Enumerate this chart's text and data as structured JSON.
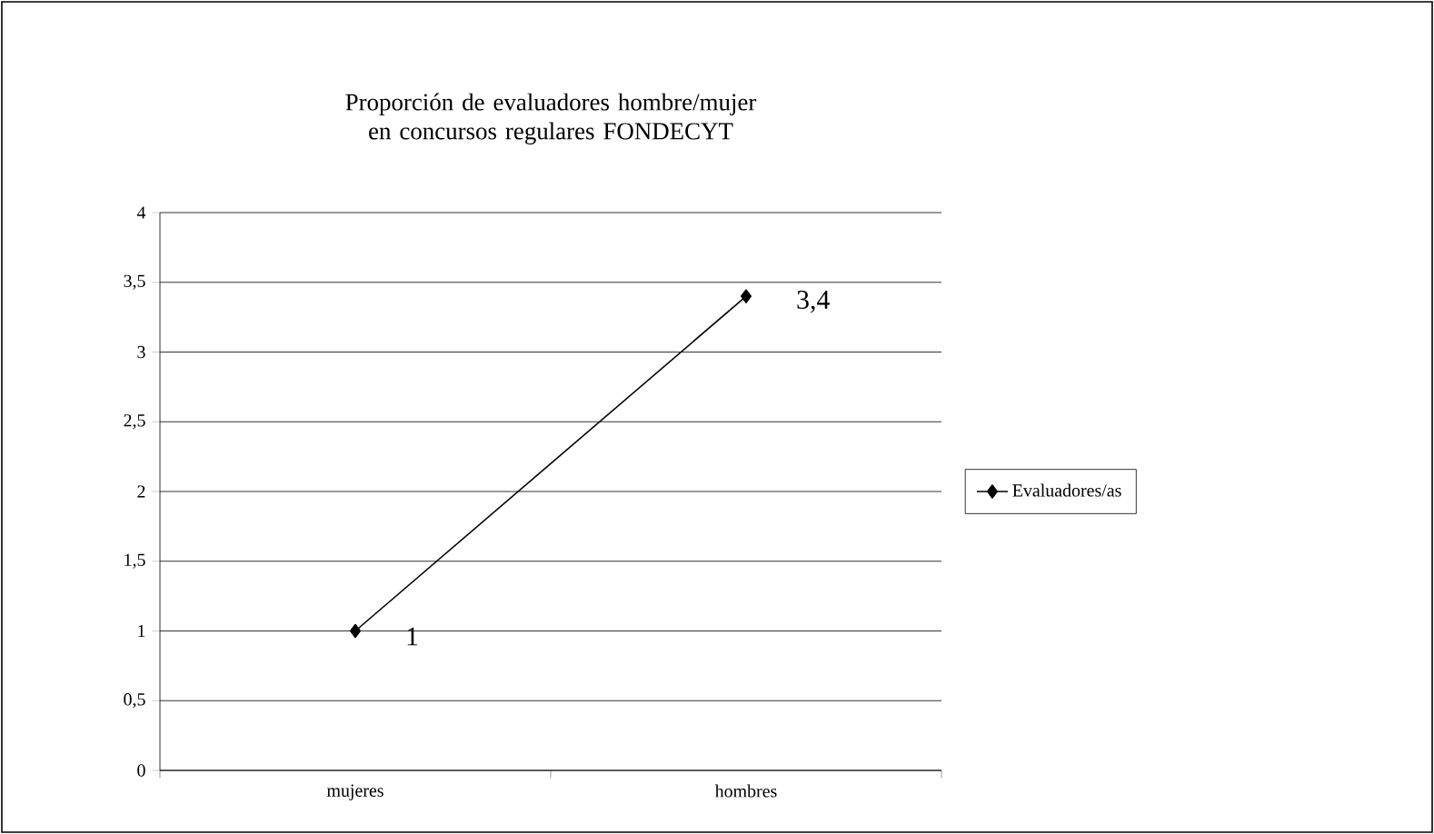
{
  "chart_data": {
    "type": "line",
    "title": "Proporción de evaluadores hombre/mujer en concursos regulares FONDECYT",
    "categories": [
      "mujeres",
      "hombres"
    ],
    "series": [
      {
        "name": "Evaluadores/as",
        "color": "#000000",
        "values": [
          1,
          3.4
        ],
        "value_labels": [
          "1",
          "3,4"
        ]
      }
    ],
    "ylim": [
      0,
      4
    ],
    "yticks": [
      0,
      {
        "value": 0.5,
        "label": "0,5"
      },
      1,
      {
        "value": 1.5,
        "label": "1,5"
      },
      2,
      {
        "value": 2.5,
        "label": "2,5"
      },
      3,
      {
        "value": 3.5,
        "label": "3,5"
      },
      4
    ],
    "grid": "y",
    "legend": "right",
    "marker": "diamond",
    "line_style": "solid"
  }
}
